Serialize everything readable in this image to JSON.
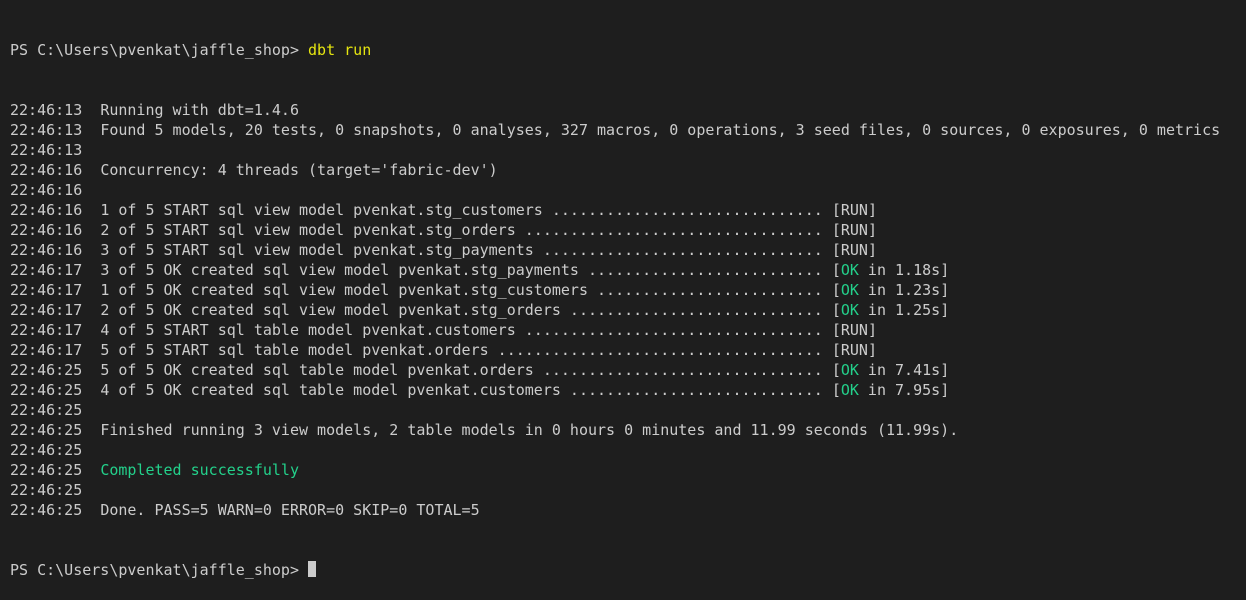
{
  "terminal": {
    "colors": {
      "background": "#1e1e1e",
      "text": "#cccccc",
      "command": "#e5e510",
      "success": "#23d18b"
    },
    "prompt": {
      "path": "PS C:\\Users\\pvenkat\\jaffle_shop> ",
      "command": "dbt run"
    },
    "lines": [
      {
        "ts": "22:46:13",
        "text": "Running with dbt=1.4.6"
      },
      {
        "ts": "22:46:13",
        "text": "Found 5 models, 20 tests, 0 snapshots, 0 analyses, 327 macros, 0 operations, 3 seed files, 0 sources, 0 exposures, 0 metrics"
      },
      {
        "ts": "22:46:13",
        "text": ""
      },
      {
        "ts": "22:46:16",
        "text": "Concurrency: 4 threads (target='fabric-dev')"
      },
      {
        "ts": "22:46:16",
        "text": ""
      },
      {
        "ts": "22:46:16",
        "text": "1 of 5 START sql view model pvenkat.stg_customers .............................. ",
        "status": "RUN"
      },
      {
        "ts": "22:46:16",
        "text": "2 of 5 START sql view model pvenkat.stg_orders ................................. ",
        "status": "RUN"
      },
      {
        "ts": "22:46:16",
        "text": "3 of 5 START sql view model pvenkat.stg_payments ............................... ",
        "status": "RUN"
      },
      {
        "ts": "22:46:17",
        "text": "3 of 5 OK created sql view model pvenkat.stg_payments .......................... ",
        "status": "OK",
        "time": " in 1.18s"
      },
      {
        "ts": "22:46:17",
        "text": "1 of 5 OK created sql view model pvenkat.stg_customers ......................... ",
        "status": "OK",
        "time": " in 1.23s"
      },
      {
        "ts": "22:46:17",
        "text": "2 of 5 OK created sql view model pvenkat.stg_orders ............................ ",
        "status": "OK",
        "time": " in 1.25s"
      },
      {
        "ts": "22:46:17",
        "text": "4 of 5 START sql table model pvenkat.customers ................................. ",
        "status": "RUN"
      },
      {
        "ts": "22:46:17",
        "text": "5 of 5 START sql table model pvenkat.orders .................................... ",
        "status": "RUN"
      },
      {
        "ts": "22:46:25",
        "text": "5 of 5 OK created sql table model pvenkat.orders ............................... ",
        "status": "OK",
        "time": " in 7.41s"
      },
      {
        "ts": "22:46:25",
        "text": "4 of 5 OK created sql table model pvenkat.customers ............................ ",
        "status": "OK",
        "time": " in 7.95s"
      },
      {
        "ts": "22:46:25",
        "text": ""
      },
      {
        "ts": "22:46:25",
        "text": "Finished running 3 view models, 2 table models in 0 hours 0 minutes and 11.99 seconds (11.99s)."
      },
      {
        "ts": "22:46:25",
        "text": ""
      },
      {
        "ts": "22:46:25",
        "text": "Completed successfully",
        "green": true
      },
      {
        "ts": "22:46:25",
        "text": ""
      },
      {
        "ts": "22:46:25",
        "text": "Done. PASS=5 WARN=0 ERROR=0 SKIP=0 TOTAL=5"
      }
    ],
    "final_prompt": "PS C:\\Users\\pvenkat\\jaffle_shop> "
  }
}
